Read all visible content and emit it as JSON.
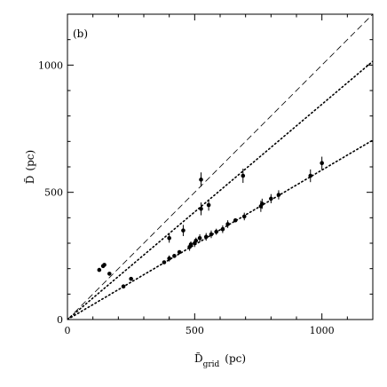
{
  "chart_data": {
    "type": "scatter",
    "panel_label": "(b)",
    "xlabel": "D̃grid (pc)",
    "xlabel_main": "D̃",
    "xlabel_sub": "grid",
    "xlabel_unit": "(pc)",
    "ylabel": "D̃ (pc)",
    "ylabel_main": "D̃",
    "ylabel_unit": "(pc)",
    "xlim": [
      0,
      1200
    ],
    "ylim": [
      0,
      1200
    ],
    "xticks": [
      0,
      500,
      1000
    ],
    "yticks": [
      0,
      500,
      1000
    ],
    "xtick_labels": [
      "0",
      "500",
      "1000"
    ],
    "ytick_labels": [
      "0",
      "500",
      "1000"
    ],
    "grid": false,
    "lines": [
      {
        "style": "dashed",
        "x": [
          0,
          1200
        ],
        "y": [
          0,
          1200
        ]
      },
      {
        "style": "dotted",
        "x": [
          0,
          1200
        ],
        "y": [
          0,
          1015
        ]
      },
      {
        "style": "dotted",
        "x": [
          0,
          1200
        ],
        "y": [
          0,
          705
        ]
      }
    ],
    "series": [
      {
        "points": [
          {
            "x": 125,
            "y": 195,
            "err": 0
          },
          {
            "x": 140,
            "y": 210,
            "err": 0
          },
          {
            "x": 145,
            "y": 215,
            "err": 0
          },
          {
            "x": 165,
            "y": 180,
            "err": 0
          },
          {
            "x": 220,
            "y": 130,
            "err": 0
          },
          {
            "x": 250,
            "y": 160,
            "err": 0
          },
          {
            "x": 380,
            "y": 225,
            "err": 0
          },
          {
            "x": 400,
            "y": 240,
            "err": 12
          },
          {
            "x": 400,
            "y": 320,
            "err": 18
          },
          {
            "x": 420,
            "y": 250,
            "err": 0
          },
          {
            "x": 440,
            "y": 265,
            "err": 0
          },
          {
            "x": 455,
            "y": 350,
            "err": 22
          },
          {
            "x": 480,
            "y": 285,
            "err": 15
          },
          {
            "x": 485,
            "y": 295,
            "err": 12
          },
          {
            "x": 500,
            "y": 300,
            "err": 15
          },
          {
            "x": 505,
            "y": 310,
            "err": 12
          },
          {
            "x": 520,
            "y": 320,
            "err": 15
          },
          {
            "x": 525,
            "y": 435,
            "err": 25
          },
          {
            "x": 525,
            "y": 550,
            "err": 28
          },
          {
            "x": 545,
            "y": 325,
            "err": 15
          },
          {
            "x": 555,
            "y": 450,
            "err": 22
          },
          {
            "x": 565,
            "y": 335,
            "err": 15
          },
          {
            "x": 585,
            "y": 345,
            "err": 12
          },
          {
            "x": 610,
            "y": 355,
            "err": 15
          },
          {
            "x": 630,
            "y": 375,
            "err": 15
          },
          {
            "x": 660,
            "y": 390,
            "err": 0
          },
          {
            "x": 690,
            "y": 565,
            "err": 28
          },
          {
            "x": 695,
            "y": 405,
            "err": 15
          },
          {
            "x": 760,
            "y": 445,
            "err": 22
          },
          {
            "x": 765,
            "y": 455,
            "err": 20
          },
          {
            "x": 800,
            "y": 475,
            "err": 18
          },
          {
            "x": 830,
            "y": 490,
            "err": 18
          },
          {
            "x": 955,
            "y": 565,
            "err": 25
          },
          {
            "x": 1000,
            "y": 615,
            "err": 25
          }
        ]
      }
    ]
  }
}
